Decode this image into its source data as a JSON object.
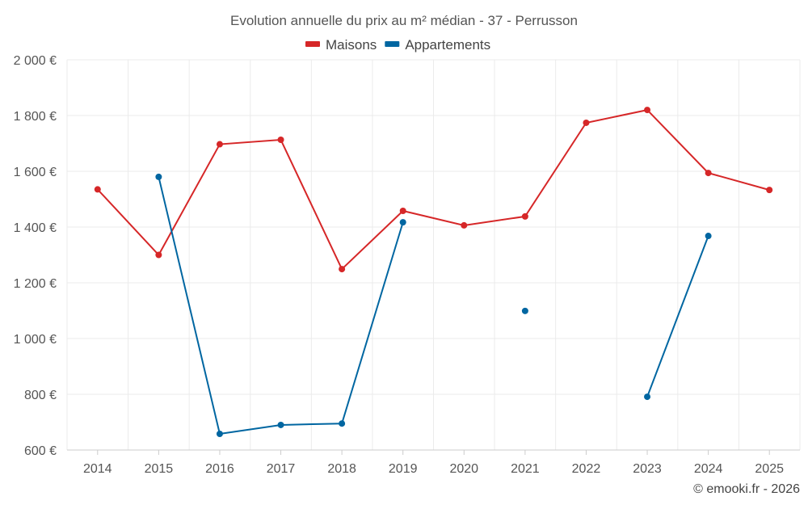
{
  "chart_data": {
    "type": "line",
    "title": "Evolution annuelle du prix au m² médian - 37 - Perrusson",
    "xlabel": "",
    "ylabel": "",
    "categories": [
      "2014",
      "2015",
      "2016",
      "2017",
      "2018",
      "2019",
      "2020",
      "2021",
      "2022",
      "2023",
      "2024",
      "2025"
    ],
    "ylim": [
      600,
      2000
    ],
    "yticks": [
      600,
      800,
      1000,
      1200,
      1400,
      1600,
      1800,
      2000
    ],
    "ytick_labels": [
      "600 €",
      "800 €",
      "1 000 €",
      "1 200 €",
      "1 400 €",
      "1 600 €",
      "1 800 €",
      "2 000 €"
    ],
    "grid": true,
    "legend_position": "top-center",
    "series": [
      {
        "name": "Maisons",
        "color": "#d62728",
        "values": [
          1535,
          1300,
          1697,
          1713,
          1249,
          1458,
          1406,
          1438,
          1774,
          1820,
          1594,
          1533
        ]
      },
      {
        "name": "Appartements",
        "color": "#0066a1",
        "values": [
          null,
          1580,
          658,
          690,
          695,
          1417,
          null,
          1099,
          null,
          791,
          1368,
          null
        ]
      }
    ],
    "credit": "© emooki.fr - 2026"
  }
}
